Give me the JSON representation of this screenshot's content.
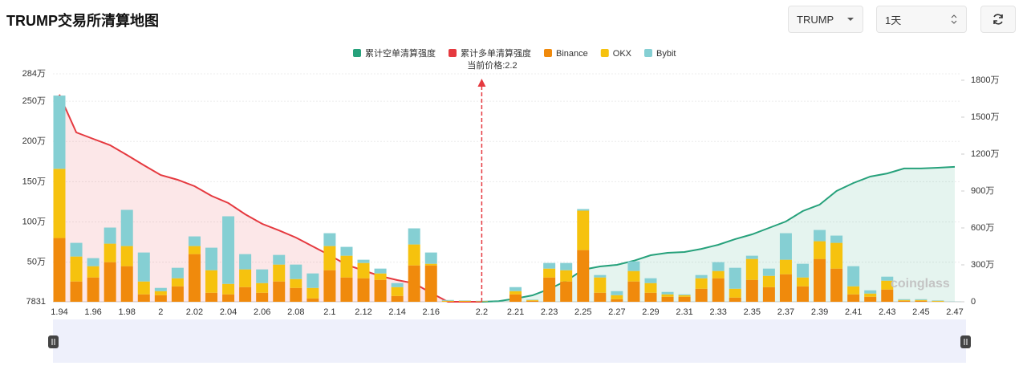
{
  "header": {
    "title": "TRUMP交易所清算地图",
    "controls": [
      "TRUMP",
      "1天"
    ]
  },
  "chart_data": {
    "type": "bar",
    "categories": [
      "1.94",
      null,
      "1.96",
      null,
      "1.98",
      null,
      "2",
      null,
      "2.02",
      null,
      "2.04",
      null,
      "2.06",
      null,
      "2.08",
      null,
      "2.1",
      null,
      "2.12",
      null,
      "2.14",
      null,
      "2.16",
      null,
      null,
      "2.2",
      null,
      "2.21",
      null,
      "2.23",
      null,
      "2.25",
      null,
      "2.27",
      null,
      "2.29",
      null,
      "2.31",
      null,
      "2.33",
      null,
      "2.35",
      null,
      "2.37",
      null,
      "2.39",
      null,
      "2.41",
      null,
      "2.43",
      null,
      "2.45",
      null,
      "2.47"
    ],
    "series": [
      {
        "name": "累计空单清算强度",
        "type": "line",
        "axis": "y2",
        "color": "#26a17b",
        "values": [
          null,
          null,
          null,
          null,
          null,
          null,
          null,
          null,
          null,
          null,
          null,
          null,
          null,
          null,
          null,
          null,
          null,
          null,
          null,
          null,
          null,
          null,
          null,
          null,
          null,
          0,
          50000,
          260000,
          520000,
          1040000,
          1700000,
          2610000,
          2870000,
          3000000,
          3330000,
          3780000,
          3980000,
          4040000,
          4300000,
          4630000,
          5090000,
          5480000,
          6000000,
          6520000,
          7370000,
          7890000,
          9000000,
          9650000,
          10170000,
          10430000,
          10830000,
          10830000,
          10890000,
          10960000
        ]
      },
      {
        "name": "累计多单清算强度",
        "type": "line",
        "axis": "y2",
        "color": "#e5393f",
        "values": [
          16830000,
          13760000,
          13240000,
          12720000,
          11930000,
          11090000,
          10300000,
          9910000,
          9390000,
          8610000,
          8020000,
          7110000,
          6330000,
          5800000,
          5220000,
          4500000,
          3780000,
          3000000,
          2540000,
          2090000,
          1760000,
          1500000,
          720000,
          0,
          0,
          0,
          null,
          null,
          null,
          null,
          null,
          null,
          null,
          null,
          null,
          null,
          null,
          null,
          null,
          null,
          null,
          null,
          null,
          null,
          null,
          null,
          null,
          null,
          null,
          null,
          null,
          null,
          null,
          null
        ]
      },
      {
        "name": "Binance",
        "type": "bar",
        "color": "#f08a0c",
        "values": [
          800000,
          260000,
          310000,
          500000,
          450000,
          100000,
          90000,
          200000,
          600000,
          120000,
          100000,
          190000,
          120000,
          260000,
          180000,
          50000,
          400000,
          310000,
          300000,
          280000,
          80000,
          460000,
          460000,
          10000,
          10000,
          10000,
          5000,
          100000,
          20000,
          310000,
          260000,
          650000,
          120000,
          40000,
          260000,
          120000,
          70000,
          70000,
          170000,
          300000,
          60000,
          280000,
          190000,
          350000,
          200000,
          540000,
          420000,
          100000,
          70000,
          160000,
          20000,
          20000,
          10000,
          5000
        ]
      },
      {
        "name": "OKX",
        "type": "bar",
        "color": "#f6c20e",
        "values": [
          860000,
          310000,
          140000,
          230000,
          250000,
          160000,
          50000,
          100000,
          100000,
          280000,
          130000,
          220000,
          120000,
          210000,
          110000,
          130000,
          300000,
          270000,
          190000,
          80000,
          110000,
          260000,
          20000,
          10000,
          10000,
          5000,
          3000,
          40000,
          10000,
          110000,
          140000,
          490000,
          190000,
          50000,
          130000,
          120000,
          30000,
          20000,
          130000,
          90000,
          110000,
          260000,
          140000,
          180000,
          110000,
          220000,
          320000,
          100000,
          40000,
          110000,
          10000,
          10000,
          10000,
          3000
        ]
      },
      {
        "name": "Bybit",
        "type": "bar",
        "color": "#85cfd3",
        "values": [
          910000,
          170000,
          100000,
          200000,
          450000,
          360000,
          40000,
          130000,
          120000,
          280000,
          840000,
          190000,
          170000,
          120000,
          180000,
          180000,
          160000,
          110000,
          40000,
          60000,
          50000,
          200000,
          140000,
          10000,
          5000,
          5000,
          2000,
          50000,
          5000,
          70000,
          90000,
          20000,
          30000,
          50000,
          120000,
          60000,
          30000,
          10000,
          40000,
          110000,
          260000,
          40000,
          90000,
          330000,
          170000,
          140000,
          90000,
          250000,
          40000,
          50000,
          10000,
          10000,
          5000,
          2000
        ]
      }
    ],
    "ylim": [
      7831,
      2840000
    ],
    "yticks": [
      7831,
      {
        "value": 500000,
        "label": "50万"
      },
      {
        "value": 1000000,
        "label": "100万"
      },
      {
        "value": 1500000,
        "label": "150万"
      },
      {
        "value": 2000000,
        "label": "200万"
      },
      {
        "value": 2500000,
        "label": "250万"
      },
      {
        "value": 2840000,
        "label": "284万"
      }
    ],
    "y2lim": [
      0,
      18520000
    ],
    "y2ticks": [
      0,
      {
        "value": 3000000,
        "label": "300万"
      },
      {
        "value": 6000000,
        "label": "600万"
      },
      {
        "value": 9000000,
        "label": "900万"
      },
      {
        "value": 12000000,
        "label": "1200万"
      },
      {
        "value": 15000000,
        "label": "1500万"
      },
      {
        "value": 18000000,
        "label": "1800万"
      }
    ],
    "grid": true,
    "annotation": {
      "value": 2.2,
      "label": "当前价格:2.2"
    },
    "watermark": "coinglass"
  }
}
